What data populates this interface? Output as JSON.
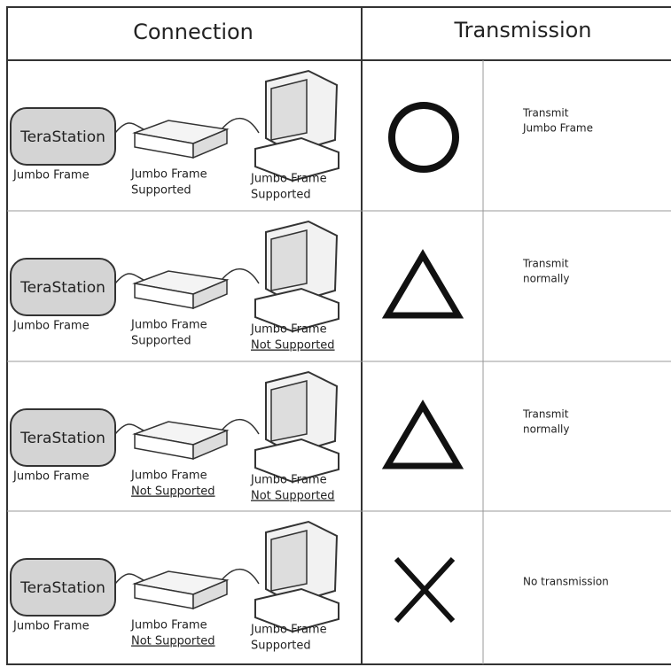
{
  "header": {
    "connection": "Connection",
    "transmission": "Transmission"
  },
  "rows": [
    {
      "terastation": "TeraStation",
      "terastation_label": "Jumbo Frame",
      "switch_label": [
        "Jumbo Frame",
        "Supported"
      ],
      "pc_label": [
        "Jumbo Frame",
        "Supported"
      ],
      "transmission": [
        "Transmit",
        "Jumbo Frame"
      ]
    },
    {
      "terastation": "TeraStation",
      "terastation_label": "Jumbo Frame",
      "switch_label": [
        "Jumbo Frame",
        "Supported"
      ],
      "pc_label": [
        "Jumbo Frame",
        "Not Supported"
      ],
      "transmission": [
        "Transmit",
        "normally"
      ]
    },
    {
      "terastation": "TeraStation",
      "terastation_label": "Jumbo Frame",
      "switch_label": [
        "Jumbo Frame",
        "Not Supported"
      ],
      "pc_label": [
        "Jumbo Frame",
        "Not Supported"
      ],
      "transmission": [
        "Transmit",
        "normally"
      ]
    },
    {
      "terastation": "TeraStation",
      "terastation_label": "Jumbo Frame",
      "switch_label": [
        "Jumbo Frame",
        "Not Supported"
      ],
      "pc_label": [
        "Jumbo Frame",
        "Supported"
      ],
      "transmission": [
        "No transmission"
      ]
    }
  ]
}
